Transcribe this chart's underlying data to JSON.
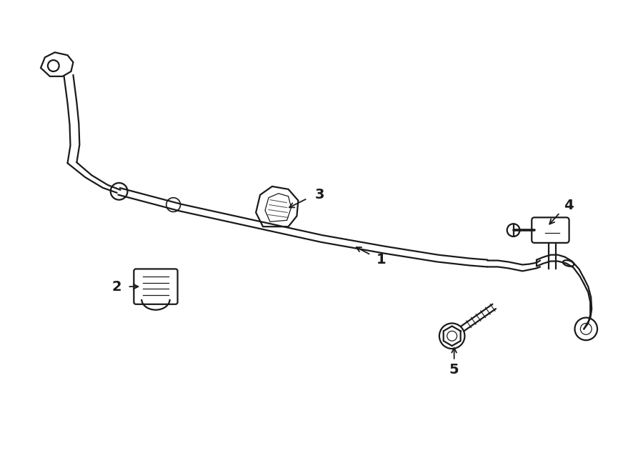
{
  "background_color": "#ffffff",
  "line_color": "#1a1a1a",
  "lw": 1.6,
  "figure_width": 9.0,
  "figure_height": 6.62,
  "dpi": 100
}
